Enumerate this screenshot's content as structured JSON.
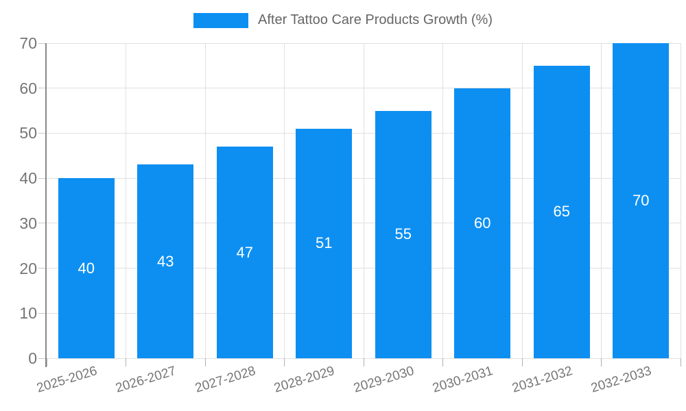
{
  "legend": {
    "label": "After Tattoo Care Products Growth (%)"
  },
  "chart_data": {
    "type": "bar",
    "title": "",
    "legend_label": "After Tattoo Care Products Growth (%)",
    "legend_position": "top",
    "categories": [
      "2025-2026",
      "2026-2027",
      "2027-2028",
      "2028-2029",
      "2029-2030",
      "2030-2031",
      "2031-2032",
      "2032-2033"
    ],
    "values": [
      40,
      43,
      47,
      51,
      55,
      60,
      65,
      70
    ],
    "xlabel": "",
    "ylabel": "",
    "ylim": [
      0,
      70
    ],
    "ytick_step": 10,
    "grid": true,
    "bar_labels_shown": true,
    "bar_label_position": "inside-middle",
    "x_label_rotation_deg": -17,
    "colors": {
      "bar": "#0d8ff2",
      "bar_label": "#ffffff",
      "gridline": "#e0e0e0",
      "axis_line": "#888888",
      "tick_label": "#757575",
      "legend_text": "#666666",
      "background": "#ffffff"
    }
  }
}
